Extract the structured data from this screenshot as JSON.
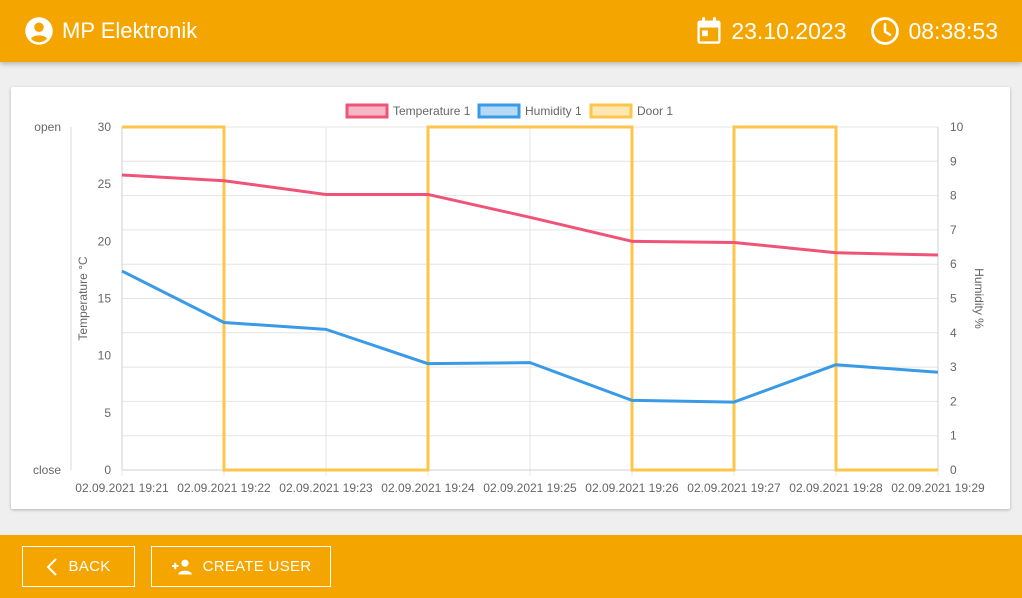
{
  "header": {
    "brand": "MP Elektronik",
    "date": "23.10.2023",
    "time": "08:38:53",
    "icons": {
      "user": "account-circle-icon",
      "date": "calendar-icon",
      "time": "clock-icon"
    }
  },
  "footer": {
    "back_label": "BACK",
    "create_user_label": "CREATE USER"
  },
  "colors": {
    "accent": "#f5a500",
    "temperature": "#ef5478",
    "humidity": "#3a9ae6",
    "door": "#fdc54a"
  },
  "chart_data": {
    "type": "line",
    "categories": [
      "02.09.2021 19:21",
      "02.09.2021 19:22",
      "02.09.2021 19:23",
      "02.09.2021 19:24",
      "02.09.2021 19:25",
      "02.09.2021 19:26",
      "02.09.2021 19:27",
      "02.09.2021 19:28",
      "02.09.2021 19:29"
    ],
    "legend_position": "top",
    "grid": true,
    "series": [
      {
        "name": "Temperature 1",
        "axis": "y_temp",
        "values": [
          25.8,
          25.3,
          24.1,
          24.1,
          22.1,
          20.0,
          19.9,
          19.0,
          18.8
        ]
      },
      {
        "name": "Humidity 1",
        "axis": "y_hum",
        "values": [
          5.8,
          4.3,
          4.1,
          3.1,
          3.13,
          2.03,
          1.98,
          3.07,
          2.85
        ]
      },
      {
        "name": "Door 1",
        "axis": "y_door",
        "step": true,
        "values": [
          "open",
          "close",
          "close",
          "open",
          "open",
          "close",
          "open",
          "close",
          "close"
        ]
      }
    ],
    "axes": {
      "y_temp": {
        "label": "Temperature °C",
        "min": 0,
        "max": 30,
        "ticks": [
          "0",
          "5",
          "10",
          "15",
          "20",
          "25",
          "30"
        ]
      },
      "y_hum": {
        "label": "Humidity %",
        "min": 0,
        "max": 10,
        "ticks": [
          "0",
          "1",
          "2",
          "3",
          "4",
          "5",
          "6",
          "7",
          "8",
          "9",
          "10"
        ]
      },
      "y_door": {
        "labels": [
          "close",
          "open"
        ]
      }
    }
  }
}
